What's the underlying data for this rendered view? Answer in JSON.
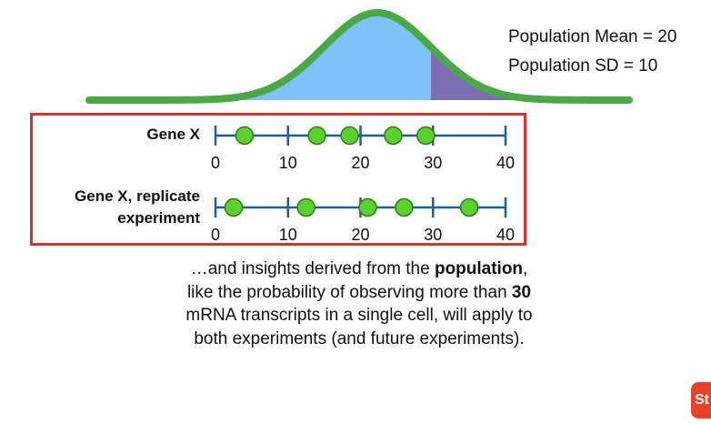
{
  "population": {
    "mean_label": "Population Mean = 20",
    "sd_label": "Population SD = 10",
    "mean": 20,
    "sd": 10,
    "shaded_threshold": 30,
    "colors": {
      "curve": "#4ba945",
      "body_fill": "#7dc2fa",
      "tail_fill": "#7b6fb2"
    }
  },
  "gene_box": {
    "border_color": "#d9302c"
  },
  "rows": [
    {
      "label_lines": [
        "Gene X"
      ],
      "points": [
        4,
        14,
        18.5,
        24.5,
        29
      ]
    },
    {
      "label_lines": [
        "Gene X, replicate",
        "experiment"
      ],
      "points": [
        2.5,
        12.5,
        21,
        26,
        35
      ]
    }
  ],
  "axis": {
    "ticks": [
      0,
      10,
      20,
      30,
      40
    ],
    "tick_labels": [
      "0",
      "10",
      "20",
      "30",
      "40"
    ],
    "colors": {
      "line": "#1a5f9c",
      "point": "#5ad22e",
      "point_outline": "#2f7d17"
    }
  },
  "caption": {
    "part1": "…and insights derived from the ",
    "bold1": "population",
    "part2": ", like the probability of observing more than ",
    "bold2": "30",
    "part3": " mRNA transcripts in a single cell, will apply to both experiments (and future experiments)."
  },
  "logo": {
    "text": "St"
  }
}
